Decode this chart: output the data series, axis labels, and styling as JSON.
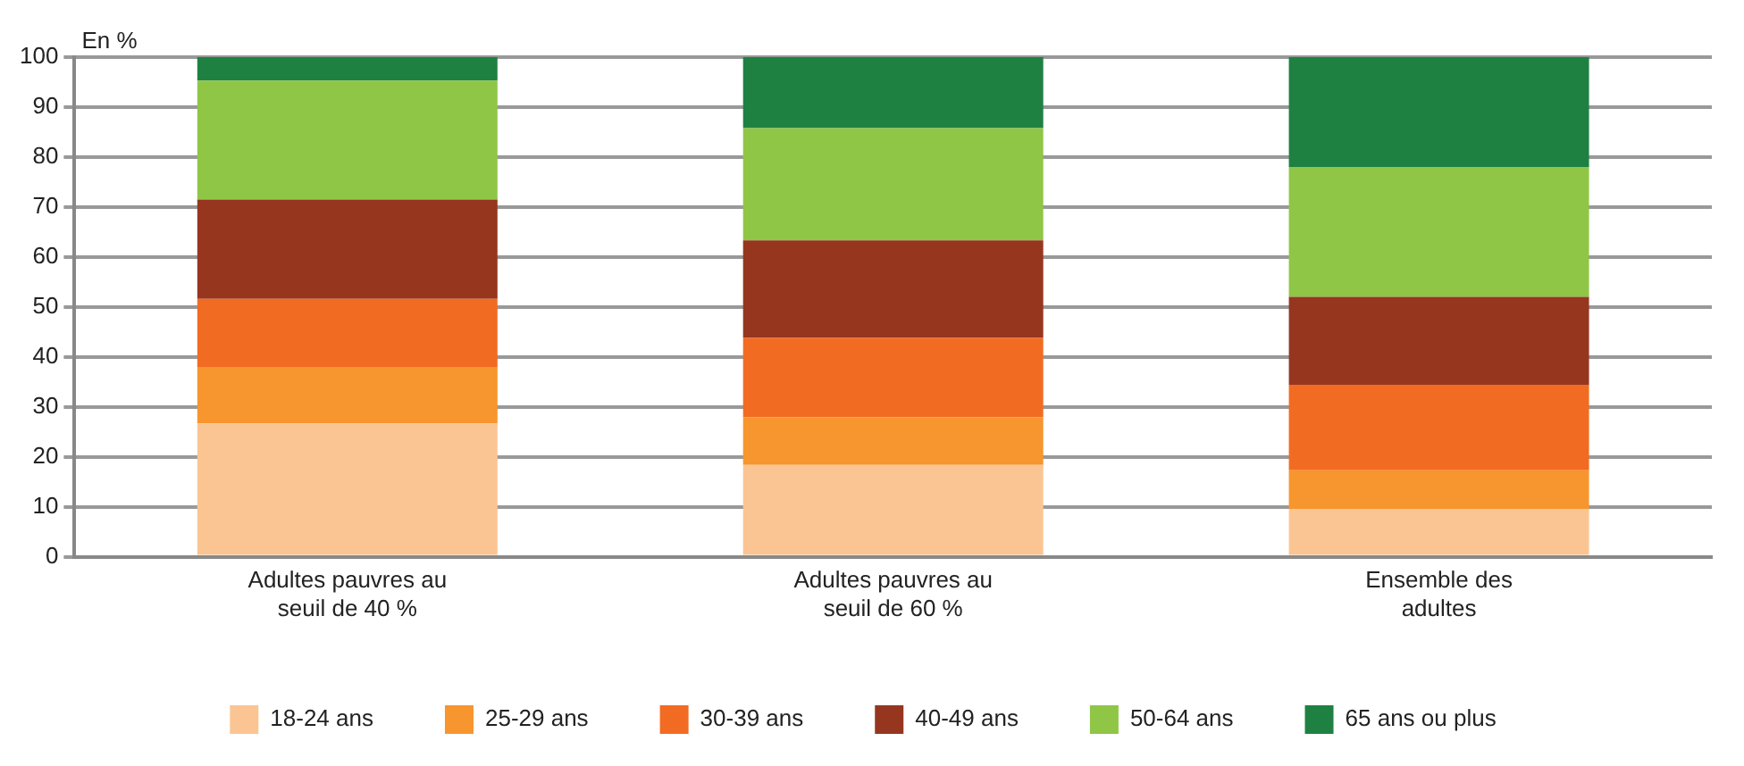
{
  "chart_data": {
    "type": "bar",
    "stacked": true,
    "ylabel": "En %",
    "categories": [
      "Adultes pauvres au seuil de 40 %",
      "Adultes pauvres au seuil de 60 %",
      "Ensemble des adultes"
    ],
    "series": [
      {
        "name": "18-24 ans",
        "color": "#fbc593",
        "values": [
          26.7,
          18.4,
          9.6
        ]
      },
      {
        "name": "25-29 ans",
        "color": "#f7952e",
        "values": [
          11.3,
          9.5,
          7.7
        ]
      },
      {
        "name": "30-39 ans",
        "color": "#f26b22",
        "values": [
          13.6,
          15.9,
          17.1
        ]
      },
      {
        "name": "40-49 ans",
        "color": "#96361f",
        "values": [
          19.9,
          19.5,
          17.6
        ]
      },
      {
        "name": "50-64 ans",
        "color": "#8fc646",
        "values": [
          23.8,
          22.5,
          26.0
        ]
      },
      {
        "name": "65 ans ou plus",
        "color": "#1e8142",
        "values": [
          4.7,
          14.2,
          22.0
        ]
      }
    ],
    "ylim": [
      0,
      100
    ],
    "yticks": [
      0,
      10,
      20,
      30,
      40,
      50,
      60,
      70,
      80,
      90,
      100
    ],
    "grid": "y",
    "legend": "bottom"
  }
}
